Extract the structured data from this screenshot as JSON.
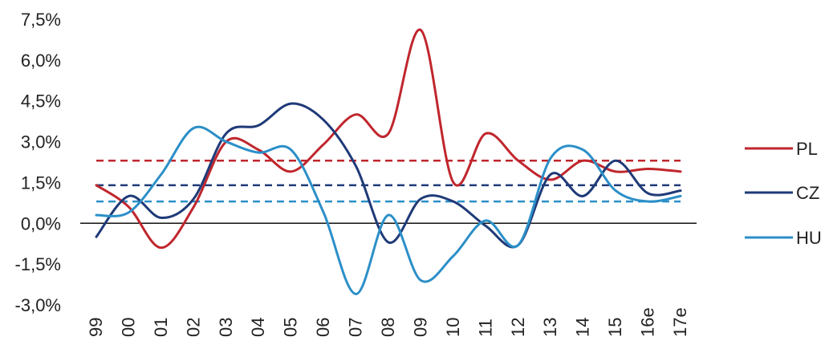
{
  "chart_data": {
    "type": "line",
    "title": "",
    "xlabel": "",
    "ylabel": "",
    "categories": [
      "99",
      "00",
      "01",
      "02",
      "03",
      "04",
      "05",
      "06",
      "07",
      "08",
      "09",
      "10",
      "11",
      "12",
      "13",
      "14",
      "15",
      "16e",
      "17e"
    ],
    "y_ticks": [
      "7,5%",
      "6,0%",
      "4,5%",
      "3,0%",
      "1,5%",
      "0,0%",
      "-1,5%",
      "-3,0%"
    ],
    "y_tick_values": [
      7.5,
      6.0,
      4.5,
      3.0,
      1.5,
      0.0,
      -1.5,
      -3.0
    ],
    "ylim": [
      -3.0,
      7.5
    ],
    "grid": false,
    "legend_position": "right",
    "series": [
      {
        "name": "PL",
        "color": "#c0262d",
        "values": [
          1.4,
          0.6,
          -0.9,
          0.6,
          3.0,
          2.7,
          1.9,
          2.9,
          4.0,
          3.3,
          7.1,
          1.5,
          3.3,
          2.3,
          1.6,
          2.3,
          1.9,
          2.0,
          1.9
        ],
        "average": 2.3
      },
      {
        "name": "CZ",
        "color": "#1f3a78",
        "values": [
          -0.5,
          1.0,
          0.2,
          0.9,
          3.3,
          3.6,
          4.4,
          3.8,
          2.1,
          -0.7,
          0.9,
          0.8,
          -0.1,
          -0.8,
          1.8,
          1.0,
          2.3,
          1.1,
          1.2
        ],
        "average": 1.4
      },
      {
        "name": "HU",
        "color": "#2b8fc8",
        "values": [
          0.3,
          0.4,
          1.8,
          3.5,
          3.0,
          2.6,
          2.7,
          0.4,
          -2.6,
          0.3,
          -2.1,
          -1.2,
          0.1,
          -0.8,
          2.4,
          2.7,
          1.2,
          0.8,
          1.0
        ],
        "average": 0.8
      }
    ]
  }
}
